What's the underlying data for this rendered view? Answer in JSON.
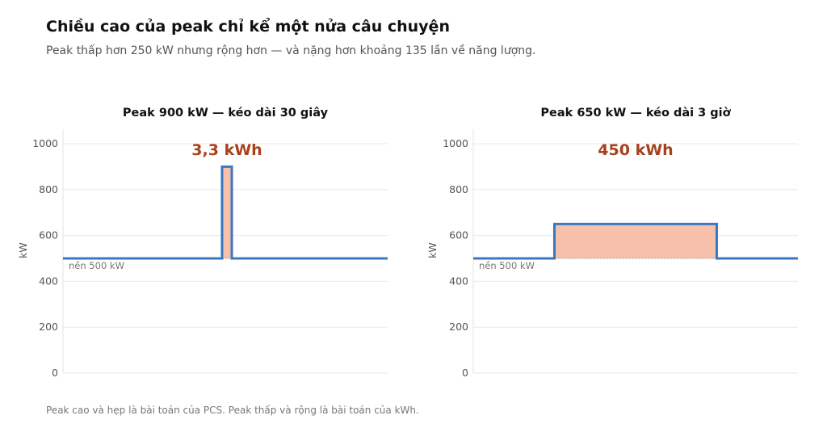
{
  "title": "Chiều cao của peak chỉ kể một nửa câu chuyện",
  "subtitle": "Peak thấp hơn 250 kW nhưng rộng hơn — và nặng hơn khoảng 135 lần về năng lượng.",
  "footnote": "Peak cao và hẹp là bài toán của PCS. Peak thấp và rộng là bài toán của kWh.",
  "colors": {
    "line": "#3a78c2",
    "fill": "#f6c0ab",
    "energy_text": "#a8401a",
    "grid": "#ece9dc"
  },
  "chart_data": [
    {
      "type": "line",
      "title": "Peak 900 kW — kéo dài 30 giây",
      "ylabel": "kW",
      "xlabel": "",
      "ylim": [
        0,
        1000
      ],
      "yticks": [
        0,
        200,
        400,
        600,
        800,
        1000
      ],
      "grid": true,
      "baseline": 500,
      "baseline_label": "nền 500 kW",
      "peak": 900,
      "energy_label": "3,3 kWh",
      "profile": {
        "x_range": [
          0,
          1
        ],
        "peak_start": 0.49,
        "peak_end": 0.52
      }
    },
    {
      "type": "line",
      "title": "Peak 650 kW — kéo dài 3 giờ",
      "ylabel": "kW",
      "xlabel": "",
      "ylim": [
        0,
        1000
      ],
      "yticks": [
        0,
        200,
        400,
        600,
        800,
        1000
      ],
      "grid": true,
      "baseline": 500,
      "baseline_label": "nền 500 kW",
      "peak": 650,
      "energy_label": "450 kWh",
      "profile": {
        "x_range": [
          0,
          1
        ],
        "peak_start": 0.25,
        "peak_end": 0.75
      }
    }
  ]
}
